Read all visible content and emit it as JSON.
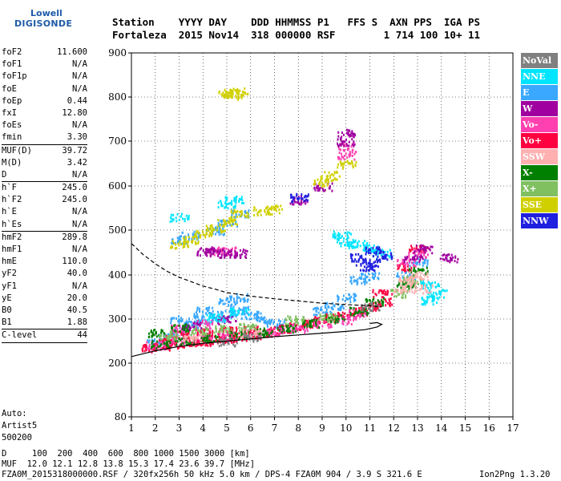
{
  "logo": {
    "line1": "Lowell",
    "line2": "DIGISONDE"
  },
  "header": {
    "row1": "Station    YYYY DAY    DDD HHMMSS P1   FFS S  AXN PPS  IGA PS",
    "row2": "Fortaleza  2015 Nov14  318 000000 RSF        1 714 100 10+ 11"
  },
  "params": [
    {
      "name": "foF2",
      "value": "11.600"
    },
    {
      "name": "foF1",
      "value": "N/A"
    },
    {
      "name": "foF1p",
      "value": "N/A"
    },
    {
      "name": "foE",
      "value": "N/A"
    },
    {
      "name": "foEp",
      "value": "0.44"
    },
    {
      "name": "fxI",
      "value": "12.80"
    },
    {
      "name": "foEs",
      "value": "N/A"
    },
    {
      "name": "fmin",
      "value": "3.30"
    },
    {
      "sep": true
    },
    {
      "name": "MUF(D)",
      "value": "39.72"
    },
    {
      "name": "M(D)",
      "value": "3.42"
    },
    {
      "name": "D",
      "value": "N/A"
    },
    {
      "sep": true
    },
    {
      "name": "h`F",
      "value": "245.0"
    },
    {
      "name": "h`F2",
      "value": "245.0"
    },
    {
      "name": "h`E",
      "value": "N/A"
    },
    {
      "name": "h`Es",
      "value": "N/A"
    },
    {
      "sep": true
    },
    {
      "name": "hmF2",
      "value": "289.8"
    },
    {
      "name": "hmF1",
      "value": "N/A"
    },
    {
      "name": "hmE",
      "value": "110.0"
    },
    {
      "name": "yF2",
      "value": "40.0"
    },
    {
      "name": "yF1",
      "value": "N/A"
    },
    {
      "name": "yE",
      "value": "20.0"
    },
    {
      "name": "B0",
      "value": "40.5"
    },
    {
      "name": "B1",
      "value": "1.88"
    },
    {
      "sep": true
    },
    {
      "name": "C-level",
      "value": "44"
    },
    {
      "sep": true
    }
  ],
  "auto": {
    "line1": "Auto:",
    "line2": "Artist5",
    "line3": "500200"
  },
  "bottom": {
    "d_row": "D     100  200  400  600  800 1000 1500 3000 [km]",
    "muf_row": "MUF  12.0 12.1 12.8 13.8 15.3 17.4 23.6 39.7 [MHz]",
    "info_row": "FZA0M_2015318000000.RSF / 320fx256h 50 kHz 5.0 km / DPS-4 FZA0M 904 / 3.9 S 321.6 E",
    "version": "Ion2Png 1.3.20"
  },
  "legend": [
    {
      "label": "NoVal",
      "color": "#808080"
    },
    {
      "label": "NNE",
      "color": "#00e5ff"
    },
    {
      "label": "E",
      "color": "#3aa8ff"
    },
    {
      "label": "W",
      "color": "#a000a0"
    },
    {
      "label": "Vo-",
      "color": "#ff40b0"
    },
    {
      "label": "Vo+",
      "color": "#ff0040"
    },
    {
      "label": "SSW",
      "color": "#ffb0b0"
    },
    {
      "label": "X-",
      "color": "#008000"
    },
    {
      "label": "X+",
      "color": "#80c060"
    },
    {
      "label": "SSE",
      "color": "#d0d000"
    },
    {
      "label": "NNW",
      "color": "#2020e0"
    }
  ],
  "chart_data": {
    "type": "scatter",
    "xlim": [
      1,
      17
    ],
    "ylim": [
      80,
      900
    ],
    "x_ticks": [
      1,
      2,
      3,
      4,
      5,
      6,
      7,
      8,
      9,
      10,
      11,
      12,
      13,
      14,
      15,
      16,
      17
    ],
    "y_ticks": [
      80,
      200,
      300,
      400,
      500,
      600,
      700,
      800,
      900
    ],
    "grid": true,
    "legend_position": "right",
    "series": [
      {
        "name": "E",
        "points": [
          [
            2.0,
            250
          ],
          [
            2.5,
            262
          ],
          [
            3.0,
            275
          ],
          [
            3.5,
            290
          ],
          [
            4.0,
            300
          ],
          [
            4.5,
            305
          ],
          [
            5.0,
            312
          ],
          [
            5.5,
            322
          ],
          [
            6.0,
            310
          ],
          [
            6.5,
            300
          ],
          [
            7.0,
            292
          ],
          [
            3.0,
            300
          ],
          [
            4.0,
            320
          ],
          [
            5.0,
            340
          ],
          [
            5.5,
            350
          ],
          [
            9.0,
            320
          ],
          [
            9.5,
            330
          ],
          [
            10.0,
            350
          ],
          [
            10.5,
            390
          ],
          [
            11.0,
            400
          ],
          [
            12.5,
            400
          ],
          [
            13.0,
            430
          ],
          [
            3.0,
            480
          ],
          [
            3.5,
            490
          ],
          [
            4.5,
            500
          ],
          [
            5.0,
            520
          ],
          [
            5.5,
            540
          ]
        ]
      },
      {
        "name": "Vo+",
        "points": [
          [
            1.8,
            235
          ],
          [
            2.2,
            240
          ],
          [
            2.8,
            245
          ],
          [
            3.5,
            250
          ],
          [
            4.0,
            250
          ],
          [
            4.5,
            255
          ],
          [
            5.0,
            258
          ],
          [
            5.5,
            262
          ],
          [
            6.0,
            265
          ],
          [
            6.5,
            270
          ],
          [
            7.0,
            275
          ],
          [
            7.5,
            280
          ],
          [
            8.0,
            285
          ],
          [
            8.5,
            292
          ],
          [
            9.0,
            298
          ],
          [
            9.5,
            305
          ],
          [
            10.0,
            312
          ],
          [
            10.5,
            320
          ],
          [
            11.0,
            330
          ],
          [
            11.5,
            340
          ],
          [
            11.5,
            360
          ],
          [
            12.5,
            420
          ],
          [
            13.0,
            460
          ],
          [
            2.5,
            255
          ],
          [
            3.0,
            265
          ],
          [
            4.0,
            270
          ],
          [
            5.0,
            275
          ],
          [
            6.0,
            278
          ]
        ]
      },
      {
        "name": "Vo-",
        "points": [
          [
            2.0,
            242
          ],
          [
            3.0,
            252
          ],
          [
            4.0,
            258
          ],
          [
            5.0,
            262
          ],
          [
            6.0,
            268
          ],
          [
            7.0,
            272
          ],
          [
            8.0,
            280
          ],
          [
            9.0,
            292
          ],
          [
            10.0,
            300
          ],
          [
            10.5,
            315
          ],
          [
            12.5,
            430
          ],
          [
            13.0,
            450
          ],
          [
            3.0,
            280
          ],
          [
            4.0,
            290
          ],
          [
            10.0,
            690
          ],
          [
            10.0,
            670
          ],
          [
            4.5,
            455
          ],
          [
            5.0,
            455
          ]
        ]
      },
      {
        "name": "W",
        "points": [
          [
            4.0,
            455
          ],
          [
            4.5,
            452
          ],
          [
            5.0,
            450
          ],
          [
            5.5,
            450
          ],
          [
            3.5,
            285
          ],
          [
            5.0,
            300
          ],
          [
            10.0,
            700
          ],
          [
            10.0,
            720
          ],
          [
            9.0,
            600
          ],
          [
            12.8,
            440
          ],
          [
            13.2,
            460
          ],
          [
            14.3,
            440
          ],
          [
            8.0,
            570
          ]
        ]
      },
      {
        "name": "X-",
        "points": [
          [
            2.2,
            245
          ],
          [
            3.2,
            252
          ],
          [
            4.2,
            258
          ],
          [
            5.5,
            265
          ],
          [
            6.5,
            272
          ],
          [
            7.5,
            280
          ],
          [
            8.5,
            292
          ],
          [
            9.5,
            302
          ],
          [
            10.5,
            320
          ],
          [
            11.2,
            340
          ],
          [
            12.5,
            380
          ],
          [
            13.0,
            410
          ],
          [
            2.0,
            270
          ],
          [
            3.0,
            282
          ]
        ]
      },
      {
        "name": "X+",
        "points": [
          [
            2.5,
            265
          ],
          [
            3.8,
            275
          ],
          [
            4.8,
            280
          ],
          [
            5.8,
            285
          ],
          [
            7.8,
            300
          ],
          [
            9.2,
            305
          ],
          [
            12.2,
            360
          ],
          [
            12.8,
            390
          ]
        ]
      },
      {
        "name": "SSE",
        "points": [
          [
            3.0,
            470
          ],
          [
            3.5,
            480
          ],
          [
            4.0,
            495
          ],
          [
            4.5,
            505
          ],
          [
            5.0,
            520
          ],
          [
            5.5,
            540
          ],
          [
            5.5,
            815
          ],
          [
            5.2,
            805
          ],
          [
            5.0,
            810
          ],
          [
            9.0,
            610
          ],
          [
            9.3,
            625
          ],
          [
            10.0,
            650
          ],
          [
            6.5,
            545
          ],
          [
            7.0,
            550
          ]
        ]
      },
      {
        "name": "NNE",
        "points": [
          [
            9.8,
            490
          ],
          [
            10.0,
            475
          ],
          [
            10.5,
            470
          ],
          [
            11.0,
            460
          ],
          [
            11.5,
            450
          ],
          [
            13.5,
            380
          ],
          [
            13.8,
            360
          ],
          [
            13.5,
            345
          ],
          [
            4.5,
            305
          ],
          [
            5.5,
            320
          ],
          [
            3.0,
            530
          ],
          [
            5.0,
            560
          ],
          [
            5.3,
            570
          ]
        ]
      },
      {
        "name": "SSW",
        "points": [
          [
            12.4,
            370
          ],
          [
            12.6,
            390
          ],
          [
            13.0,
            400
          ],
          [
            13.2,
            370
          ],
          [
            3.5,
            262
          ],
          [
            6.0,
            270
          ]
        ]
      },
      {
        "name": "NNW",
        "points": [
          [
            10.5,
            440
          ],
          [
            11.0,
            430
          ],
          [
            11.5,
            445
          ],
          [
            10.8,
            420
          ],
          [
            8.0,
            575
          ],
          [
            11.2,
            460
          ]
        ]
      },
      {
        "name": "NoVal",
        "points": [
          [
            5.0,
            250
          ],
          [
            6.0,
            260
          ],
          [
            11.0,
            330
          ]
        ]
      }
    ],
    "profile_curve": [
      [
        1.0,
        215
      ],
      [
        2.0,
        228
      ],
      [
        3.0,
        238
      ],
      [
        4.0,
        245
      ],
      [
        5.0,
        250
      ],
      [
        6.0,
        255
      ],
      [
        7.0,
        260
      ],
      [
        8.0,
        264
      ],
      [
        9.0,
        268
      ],
      [
        10.0,
        272
      ],
      [
        10.8,
        276
      ],
      [
        11.3,
        282
      ],
      [
        11.5,
        288
      ],
      [
        11.3,
        292
      ],
      [
        11.0,
        290
      ]
    ],
    "dashed_curve": [
      [
        1.0,
        470
      ],
      [
        1.5,
        445
      ],
      [
        2.0,
        425
      ],
      [
        2.5,
        408
      ],
      [
        3.0,
        395
      ],
      [
        3.5,
        385
      ],
      [
        4.0,
        375
      ],
      [
        4.5,
        368
      ],
      [
        5.0,
        360
      ],
      [
        6.0,
        352
      ],
      [
        7.0,
        346
      ],
      [
        8.0,
        341
      ],
      [
        9.0,
        336
      ],
      [
        10.0,
        333
      ],
      [
        11.0,
        330
      ],
      [
        11.5,
        328
      ]
    ]
  }
}
